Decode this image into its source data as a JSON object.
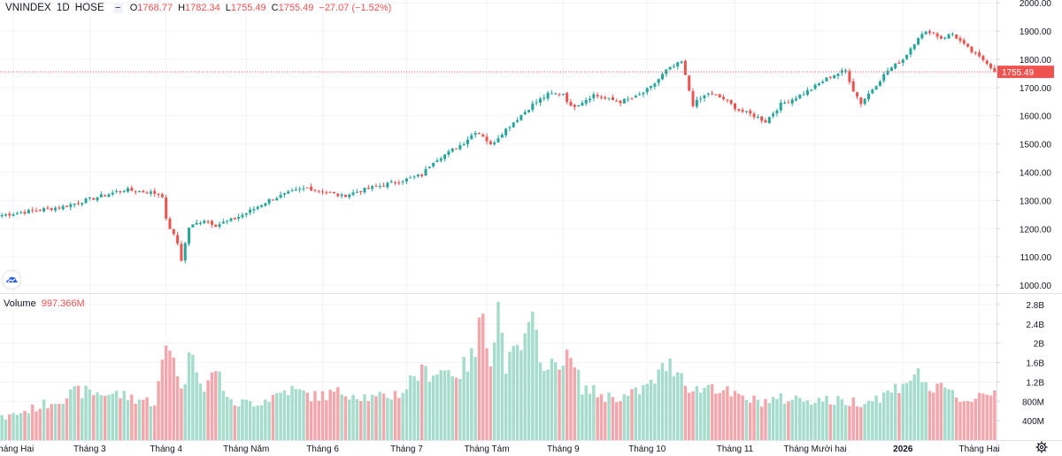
{
  "legend": {
    "symbol": "VNINDEX",
    "interval": "1D",
    "exchange": "HOSE",
    "collapse_icon": "minus-icon",
    "open_label": "O",
    "open_value": "1768.77",
    "high_label": "H",
    "high_value": "1782.34",
    "low_label": "L",
    "low_value": "1755.49",
    "close_label": "C",
    "close_value": "1755.49",
    "change": "−27.07 (−1.52%)"
  },
  "volume_legend": {
    "label": "Volume",
    "value": "997.366M"
  },
  "last_price_label": "1755.49",
  "colors": {
    "up": "#26a69a",
    "down": "#ef5350",
    "up_volume": "#a5dccc",
    "down_volume": "#f3a6ab",
    "grid": "#f0f3fa",
    "axis_text": "#131722"
  },
  "icons": {
    "logo": "tradingview-cloud-icon",
    "settings": "gear-icon"
  },
  "chart_data": [
    {
      "type": "candlestick",
      "title": "VNINDEX 1D HOSE",
      "y_axis_side": "right",
      "ylim": [
        975,
        2010
      ],
      "y_ticks": [
        1000,
        1100,
        1200,
        1300,
        1400,
        1500,
        1600,
        1700,
        1800,
        1900,
        2000
      ],
      "y_tick_labels": [
        "1000.00",
        "1100.00",
        "1200.00",
        "1300.00",
        "1400.00",
        "1500.00",
        "1600.00",
        "1700.00",
        "1800.00",
        "1900.00",
        "2000.00"
      ],
      "last_close": 1755.49,
      "x_labels": [
        "Tháng Hai",
        "Tháng 3",
        "Tháng 4",
        "Tháng Năm",
        "Tháng 6",
        "Tháng 7",
        "Tháng Tám",
        "Tháng 9",
        "Tháng 10",
        "Tháng 11",
        "Tháng Mười hai",
        "2026",
        "Tháng Hai"
      ],
      "x_label_bar_index": [
        3,
        23,
        43,
        64,
        84,
        106,
        127,
        147,
        169,
        192,
        213,
        236,
        256
      ],
      "bold_x_labels": [
        "2026"
      ],
      "anchors_close": [
        [
          0,
          1248
        ],
        [
          8,
          1263
        ],
        [
          16,
          1278
        ],
        [
          24,
          1308
        ],
        [
          32,
          1338
        ],
        [
          40,
          1326
        ],
        [
          42,
          1318
        ],
        [
          43,
          1230
        ],
        [
          46,
          1148
        ],
        [
          47,
          1090
        ],
        [
          49,
          1205
        ],
        [
          53,
          1232
        ],
        [
          56,
          1213
        ],
        [
          60,
          1230
        ],
        [
          64,
          1255
        ],
        [
          70,
          1302
        ],
        [
          76,
          1330
        ],
        [
          80,
          1345
        ],
        [
          85,
          1330
        ],
        [
          89,
          1315
        ],
        [
          94,
          1335
        ],
        [
          100,
          1355
        ],
        [
          106,
          1375
        ],
        [
          110,
          1390
        ],
        [
          113,
          1440
        ],
        [
          117,
          1470
        ],
        [
          121,
          1505
        ],
        [
          124,
          1545
        ],
        [
          126,
          1530
        ],
        [
          128,
          1495
        ],
        [
          131,
          1540
        ],
        [
          135,
          1590
        ],
        [
          139,
          1640
        ],
        [
          143,
          1675
        ],
        [
          147,
          1680
        ],
        [
          149,
          1630
        ],
        [
          152,
          1650
        ],
        [
          155,
          1675
        ],
        [
          158,
          1660
        ],
        [
          162,
          1650
        ],
        [
          166,
          1665
        ],
        [
          170,
          1700
        ],
        [
          174,
          1760
        ],
        [
          178,
          1790
        ],
        [
          181,
          1640
        ],
        [
          185,
          1680
        ],
        [
          189,
          1660
        ],
        [
          193,
          1620
        ],
        [
          197,
          1600
        ],
        [
          200,
          1580
        ],
        [
          204,
          1640
        ],
        [
          208,
          1665
        ],
        [
          212,
          1695
        ],
        [
          217,
          1740
        ],
        [
          221,
          1760
        ],
        [
          223,
          1690
        ],
        [
          225,
          1645
        ],
        [
          228,
          1695
        ],
        [
          232,
          1760
        ],
        [
          236,
          1800
        ],
        [
          240,
          1880
        ],
        [
          243,
          1900
        ],
        [
          246,
          1875
        ],
        [
          249,
          1890
        ],
        [
          252,
          1850
        ],
        [
          255,
          1815
        ],
        [
          258,
          1790
        ],
        [
          260,
          1755
        ]
      ]
    },
    {
      "type": "bar",
      "title": "Volume",
      "y_axis_side": "right",
      "ylim": [
        0,
        3000000000
      ],
      "y_ticks": [
        400000000,
        800000000,
        1200000000,
        1600000000,
        2000000000,
        2400000000,
        2800000000
      ],
      "y_tick_labels": [
        "400M",
        "800M",
        "1.2B",
        "1.6B",
        "2B",
        "2.4B",
        "2.8B"
      ],
      "color_rule": "green when close rises, red when close falls",
      "anchors_volume_millions": [
        [
          0,
          450
        ],
        [
          10,
          700
        ],
        [
          20,
          1000
        ],
        [
          30,
          950
        ],
        [
          40,
          780
        ],
        [
          43,
          1900
        ],
        [
          45,
          1850
        ],
        [
          47,
          1000
        ],
        [
          50,
          1950
        ],
        [
          53,
          1000
        ],
        [
          56,
          1500
        ],
        [
          60,
          750
        ],
        [
          68,
          800
        ],
        [
          75,
          1050
        ],
        [
          82,
          900
        ],
        [
          90,
          1000
        ],
        [
          98,
          850
        ],
        [
          105,
          1000
        ],
        [
          108,
          1350
        ],
        [
          115,
          1450
        ],
        [
          120,
          1400
        ],
        [
          124,
          1800
        ],
        [
          126,
          2750
        ],
        [
          128,
          1700
        ],
        [
          130,
          2750
        ],
        [
          132,
          1550
        ],
        [
          136,
          1900
        ],
        [
          139,
          2350
        ],
        [
          143,
          1400
        ],
        [
          146,
          1700
        ],
        [
          149,
          1650
        ],
        [
          152,
          1100
        ],
        [
          158,
          900
        ],
        [
          164,
          900
        ],
        [
          170,
          1150
        ],
        [
          174,
          1550
        ],
        [
          177,
          1500
        ],
        [
          181,
          1000
        ],
        [
          186,
          1150
        ],
        [
          192,
          900
        ],
        [
          198,
          800
        ],
        [
          205,
          850
        ],
        [
          212,
          850
        ],
        [
          219,
          800
        ],
        [
          226,
          800
        ],
        [
          230,
          900
        ],
        [
          233,
          1000
        ],
        [
          236,
          1200
        ],
        [
          239,
          1350
        ],
        [
          241,
          1300
        ],
        [
          244,
          1000
        ],
        [
          247,
          1050
        ],
        [
          250,
          900
        ],
        [
          253,
          800
        ],
        [
          256,
          950
        ],
        [
          260,
          1000
        ]
      ]
    }
  ]
}
